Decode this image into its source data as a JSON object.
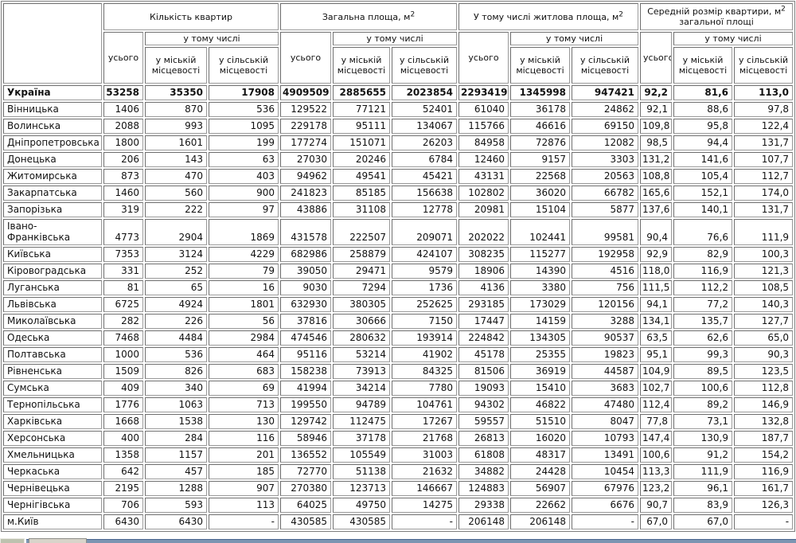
{
  "chart_data": {
    "type": "table",
    "title": "",
    "column_groups": [
      {
        "pre": "Кількість квартир",
        "sup": "",
        "post": ""
      },
      {
        "pre": "Загальна площа, м",
        "sup": "2",
        "post": ""
      },
      {
        "pre": "У тому числі житлова площа, м",
        "sup": "2",
        "post": ""
      },
      {
        "pre": "Середній розмір квартири, м",
        "sup": "2",
        "post": " загальної площі"
      }
    ],
    "subheaders": {
      "total": "усього",
      "including": "у тому числі",
      "urban": "у міській місцевості",
      "rural": "у сільській місцевості"
    },
    "rows": [
      {
        "region": "Україна",
        "bold": true,
        "values": [
          "53258",
          "35350",
          "17908",
          "4909509",
          "2885655",
          "2023854",
          "2293419",
          "1345998",
          "947421",
          "92,2",
          "81,6",
          "113,0"
        ]
      },
      {
        "region": "Вінницька",
        "bold": false,
        "values": [
          "1406",
          "870",
          "536",
          "129522",
          "77121",
          "52401",
          "61040",
          "36178",
          "24862",
          "92,1",
          "88,6",
          "97,8"
        ]
      },
      {
        "region": "Волинська",
        "bold": false,
        "values": [
          "2088",
          "993",
          "1095",
          "229178",
          "95111",
          "134067",
          "115766",
          "46616",
          "69150",
          "109,8",
          "95,8",
          "122,4"
        ]
      },
      {
        "region": "Дніпропетровська",
        "bold": false,
        "values": [
          "1800",
          "1601",
          "199",
          "177274",
          "151071",
          "26203",
          "84958",
          "72876",
          "12082",
          "98,5",
          "94,4",
          "131,7"
        ]
      },
      {
        "region": "Донецька",
        "bold": false,
        "values": [
          "206",
          "143",
          "63",
          "27030",
          "20246",
          "6784",
          "12460",
          "9157",
          "3303",
          "131,2",
          "141,6",
          "107,7"
        ]
      },
      {
        "region": "Житомирська",
        "bold": false,
        "values": [
          "873",
          "470",
          "403",
          "94962",
          "49541",
          "45421",
          "43131",
          "22568",
          "20563",
          "108,8",
          "105,4",
          "112,7"
        ]
      },
      {
        "region": "Закарпатська",
        "bold": false,
        "values": [
          "1460",
          "560",
          "900",
          "241823",
          "85185",
          "156638",
          "102802",
          "36020",
          "66782",
          "165,6",
          "152,1",
          "174,0"
        ]
      },
      {
        "region": "Запорізька",
        "bold": false,
        "values": [
          "319",
          "222",
          "97",
          "43886",
          "31108",
          "12778",
          "20981",
          "15104",
          "5877",
          "137,6",
          "140,1",
          "131,7"
        ]
      },
      {
        "region": "Івано-\nФранківська",
        "bold": false,
        "values": [
          "4773",
          "2904",
          "1869",
          "431578",
          "222507",
          "209071",
          "202022",
          "102441",
          "99581",
          "90,4",
          "76,6",
          "111,9"
        ]
      },
      {
        "region": "Київська",
        "bold": false,
        "values": [
          "7353",
          "3124",
          "4229",
          "682986",
          "258879",
          "424107",
          "308235",
          "115277",
          "192958",
          "92,9",
          "82,9",
          "100,3"
        ]
      },
      {
        "region": "Кіровоградська",
        "bold": false,
        "values": [
          "331",
          "252",
          "79",
          "39050",
          "29471",
          "9579",
          "18906",
          "14390",
          "4516",
          "118,0",
          "116,9",
          "121,3"
        ]
      },
      {
        "region": "Луганська",
        "bold": false,
        "values": [
          "81",
          "65",
          "16",
          "9030",
          "7294",
          "1736",
          "4136",
          "3380",
          "756",
          "111,5",
          "112,2",
          "108,5"
        ]
      },
      {
        "region": "Львівська",
        "bold": false,
        "values": [
          "6725",
          "4924",
          "1801",
          "632930",
          "380305",
          "252625",
          "293185",
          "173029",
          "120156",
          "94,1",
          "77,2",
          "140,3"
        ]
      },
      {
        "region": "Миколаївська",
        "bold": false,
        "values": [
          "282",
          "226",
          "56",
          "37816",
          "30666",
          "7150",
          "17447",
          "14159",
          "3288",
          "134,1",
          "135,7",
          "127,7"
        ]
      },
      {
        "region": "Одеська",
        "bold": false,
        "values": [
          "7468",
          "4484",
          "2984",
          "474546",
          "280632",
          "193914",
          "224842",
          "134305",
          "90537",
          "63,5",
          "62,6",
          "65,0"
        ]
      },
      {
        "region": "Полтавська",
        "bold": false,
        "values": [
          "1000",
          "536",
          "464",
          "95116",
          "53214",
          "41902",
          "45178",
          "25355",
          "19823",
          "95,1",
          "99,3",
          "90,3"
        ]
      },
      {
        "region": "Рівненська",
        "bold": false,
        "values": [
          "1509",
          "826",
          "683",
          "158238",
          "73913",
          "84325",
          "81506",
          "36919",
          "44587",
          "104,9",
          "89,5",
          "123,5"
        ]
      },
      {
        "region": "Сумська",
        "bold": false,
        "values": [
          "409",
          "340",
          "69",
          "41994",
          "34214",
          "7780",
          "19093",
          "15410",
          "3683",
          "102,7",
          "100,6",
          "112,8"
        ]
      },
      {
        "region": "Тернопільська",
        "bold": false,
        "values": [
          "1776",
          "1063",
          "713",
          "199550",
          "94789",
          "104761",
          "94302",
          "46822",
          "47480",
          "112,4",
          "89,2",
          "146,9"
        ]
      },
      {
        "region": "Харківська",
        "bold": false,
        "values": [
          "1668",
          "1538",
          "130",
          "129742",
          "112475",
          "17267",
          "59557",
          "51510",
          "8047",
          "77,8",
          "73,1",
          "132,8"
        ]
      },
      {
        "region": "Херсонська",
        "bold": false,
        "values": [
          "400",
          "284",
          "116",
          "58946",
          "37178",
          "21768",
          "26813",
          "16020",
          "10793",
          "147,4",
          "130,9",
          "187,7"
        ]
      },
      {
        "region": "Хмельницька",
        "bold": false,
        "values": [
          "1358",
          "1157",
          "201",
          "136552",
          "105549",
          "31003",
          "61808",
          "48317",
          "13491",
          "100,6",
          "91,2",
          "154,2"
        ]
      },
      {
        "region": "Черкаська",
        "bold": false,
        "values": [
          "642",
          "457",
          "185",
          "72770",
          "51138",
          "21632",
          "34882",
          "24428",
          "10454",
          "113,3",
          "111,9",
          "116,9"
        ]
      },
      {
        "region": "Чернівецька",
        "bold": false,
        "values": [
          "2195",
          "1288",
          "907",
          "270380",
          "123713",
          "146667",
          "124883",
          "56907",
          "67976",
          "123,2",
          "96,1",
          "161,7"
        ]
      },
      {
        "region": "Чернігівська",
        "bold": false,
        "values": [
          "706",
          "593",
          "113",
          "64025",
          "49750",
          "14275",
          "29338",
          "22662",
          "6676",
          "90,7",
          "83,9",
          "126,3"
        ]
      },
      {
        "region": "м.Київ",
        "bold": false,
        "values": [
          "6430",
          "6430",
          "-",
          "430585",
          "430585",
          "-",
          "206148",
          "206148",
          "-",
          "67,0",
          "67,0",
          "-"
        ]
      }
    ],
    "layout": {
      "grid": true,
      "first_row_is_total": true,
      "decimal_separator": ","
    },
    "colors": {
      "cell_border": "#828282",
      "text": "#111111",
      "taskbar_bar": "#7c95b2",
      "taskbar_bar_edge": "#4a6690",
      "taskbar_fragment1": "#bdc2af",
      "taskbar_fragment2": "#d8d4ca"
    }
  }
}
